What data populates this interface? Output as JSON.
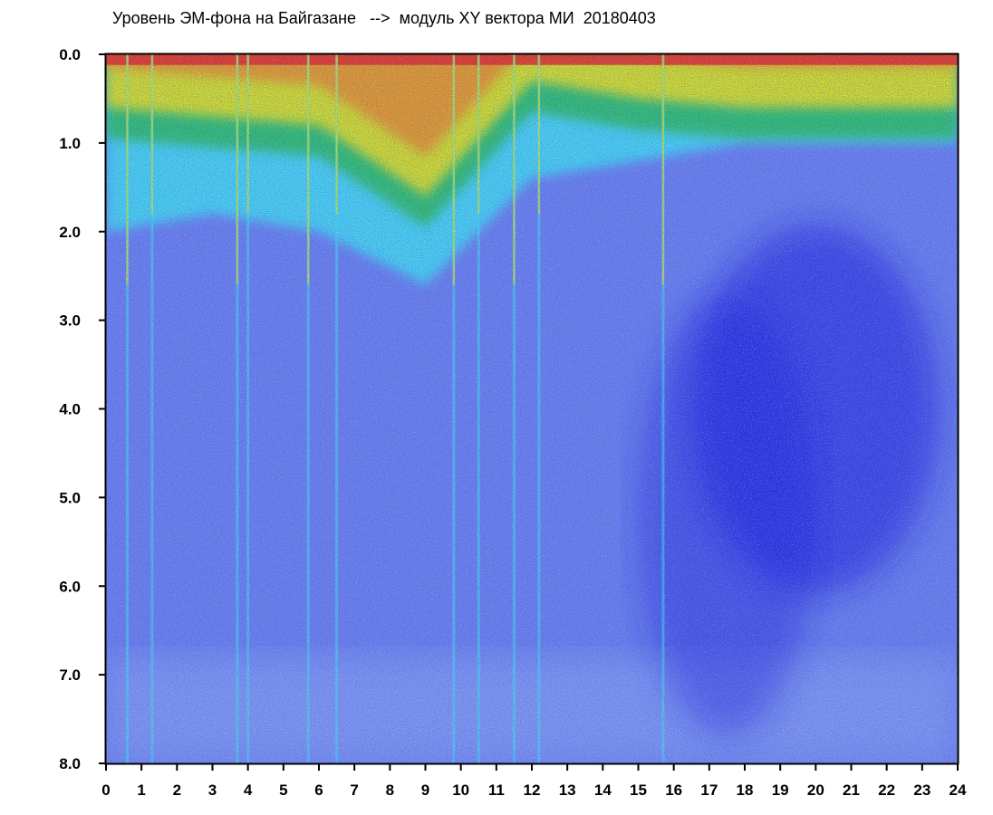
{
  "chart_data": {
    "type": "heatmap",
    "title": "Уровень ЭМ-фона на Байгазане   -->  модуль XY вектора МИ  20180403",
    "xlabel": "",
    "ylabel": "",
    "xlim": [
      0,
      24
    ],
    "ylim": [
      8.0,
      0.0
    ],
    "y_axis_inverted": true,
    "x_ticks": [
      "0",
      "1",
      "2",
      "3",
      "4",
      "5",
      "6",
      "7",
      "8",
      "9",
      "10",
      "11",
      "12",
      "13",
      "14",
      "15",
      "16",
      "17",
      "18",
      "19",
      "20",
      "21",
      "22",
      "23",
      "24"
    ],
    "y_ticks": [
      "0.0",
      "1.0",
      "2.0",
      "3.0",
      "4.0",
      "5.0",
      "6.0",
      "7.0",
      "8.0"
    ],
    "grid": false,
    "colorscale": [
      "#1418d8",
      "#6a7ee8",
      "#8fa8f0",
      "#3fe0ec",
      "#25b83a",
      "#e8e214",
      "#ec8c1a",
      "#e82418"
    ],
    "color_meaning": "low level = blue, high level = red",
    "background_level_by_hour": [
      {
        "hour": 0,
        "high_level_depth": 0.6,
        "cyan_depth": 2.0
      },
      {
        "hour": 3,
        "high_level_depth": 0.7,
        "cyan_depth": 1.8
      },
      {
        "hour": 6,
        "high_level_depth": 0.8,
        "cyan_depth": 2.0
      },
      {
        "hour": 9,
        "high_level_depth": 1.6,
        "cyan_depth": 2.6
      },
      {
        "hour": 12,
        "high_level_depth": 0.3,
        "cyan_depth": 1.4
      },
      {
        "hour": 15,
        "high_level_depth": 0.5,
        "cyan_depth": 1.2
      },
      {
        "hour": 18,
        "high_level_depth": 0.6,
        "cyan_depth": 1.0
      },
      {
        "hour": 21,
        "high_level_depth": 0.6,
        "cyan_depth": 1.0
      },
      {
        "hour": 24,
        "high_level_depth": 0.6,
        "cyan_depth": 1.0
      }
    ],
    "low_level_region": {
      "hour_range": [
        15,
        23
      ],
      "value_range": [
        1.5,
        6.5
      ]
    },
    "streaks_hours": [
      0.6,
      1.3,
      3.7,
      4.0,
      5.7,
      6.5,
      9.8,
      10.5,
      11.5,
      12.2,
      15.7
    ]
  }
}
